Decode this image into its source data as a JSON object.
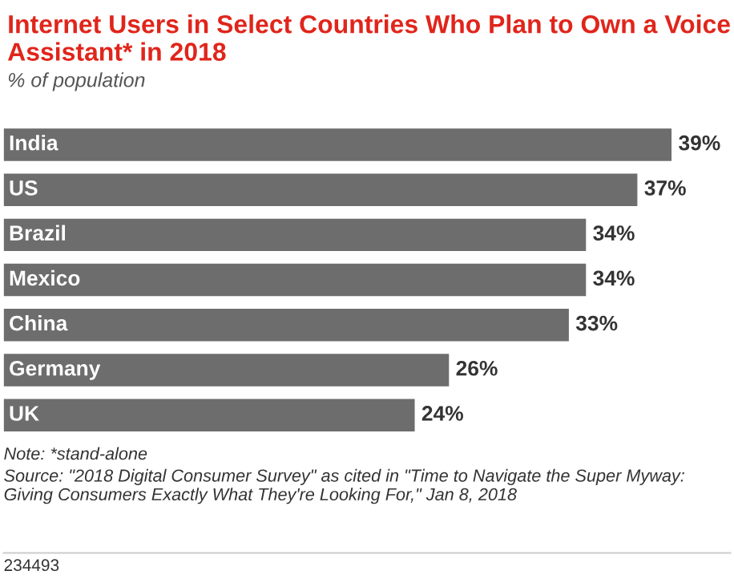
{
  "chart_data": {
    "type": "bar",
    "orientation": "horizontal",
    "title": "Internet Users in Select Countries Who Plan to Own a Voice Assistant* in 2018",
    "subtitle": "% of population",
    "categories": [
      "India",
      "US",
      "Brazil",
      "Mexico",
      "China",
      "Germany",
      "UK"
    ],
    "values": [
      39,
      37,
      34,
      34,
      33,
      26,
      24
    ],
    "value_labels": [
      "39%",
      "37%",
      "34%",
      "34%",
      "33%",
      "26%",
      "24%"
    ],
    "color": "#6d6d6d",
    "annotations": [
      "Note: *stand-alone",
      "Source: \"2018 Digital Consumer Survey\" as cited in \"Time to Navigate the Super Myway: Giving Consumers Exactly What They're Looking For,\" Jan 8, 2018",
      "234493"
    ]
  }
}
